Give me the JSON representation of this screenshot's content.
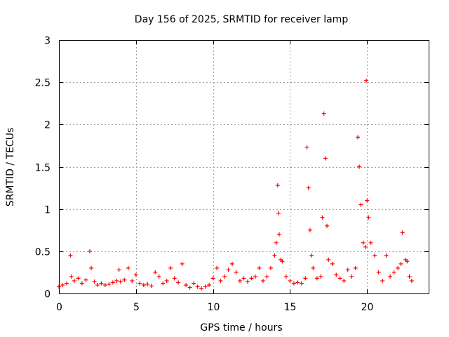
{
  "chart_data": {
    "type": "scatter",
    "title": "Day 156 of 2025, SRMTID for receiver lamp",
    "xlabel": "GPS time / hours",
    "ylabel": "SRMTID / TECUs",
    "xlim": [
      0,
      24
    ],
    "ylim": [
      0,
      3
    ],
    "xticks": [
      "0",
      "5",
      "10",
      "15",
      "20"
    ],
    "xtick_values": [
      0,
      5,
      10,
      15,
      20
    ],
    "yticks": [
      "0",
      "0.5",
      "1",
      "1.5",
      "2",
      "2.5",
      "3"
    ],
    "ytick_values": [
      0,
      0.5,
      1,
      1.5,
      2,
      2.5,
      3
    ],
    "grid": true,
    "marker": "+",
    "color": "#ff0000",
    "series": [
      {
        "name": "SRMTID",
        "x": [
          0.0,
          0.25,
          0.5,
          0.75,
          0.8,
          1.0,
          1.25,
          1.5,
          1.75,
          2.0,
          2.1,
          2.3,
          2.5,
          2.75,
          3.0,
          3.25,
          3.5,
          3.75,
          3.9,
          4.0,
          4.25,
          4.5,
          4.75,
          5.0,
          5.25,
          5.5,
          5.75,
          6.0,
          6.25,
          6.5,
          6.75,
          7.0,
          7.25,
          7.5,
          7.75,
          8.0,
          8.25,
          8.5,
          8.75,
          9.0,
          9.25,
          9.5,
          9.75,
          10.0,
          10.25,
          10.5,
          10.75,
          11.0,
          11.25,
          11.5,
          11.75,
          12.0,
          12.25,
          12.5,
          12.75,
          13.0,
          13.25,
          13.5,
          13.75,
          14.0,
          14.1,
          14.2,
          14.25,
          14.3,
          14.4,
          14.5,
          14.75,
          15.0,
          15.25,
          15.5,
          15.75,
          16.0,
          16.1,
          16.2,
          16.3,
          16.4,
          16.5,
          16.75,
          17.0,
          17.1,
          17.2,
          17.3,
          17.4,
          17.5,
          17.75,
          18.0,
          18.25,
          18.5,
          18.75,
          19.0,
          19.25,
          19.4,
          19.5,
          19.6,
          19.75,
          19.9,
          19.95,
          20.0,
          20.1,
          20.25,
          20.5,
          20.75,
          21.0,
          21.25,
          21.5,
          21.75,
          22.0,
          22.2,
          22.3,
          22.5,
          22.6,
          22.75,
          22.9
        ],
        "y": [
          0.08,
          0.1,
          0.12,
          0.45,
          0.2,
          0.15,
          0.18,
          0.12,
          0.16,
          0.5,
          0.3,
          0.14,
          0.1,
          0.12,
          0.1,
          0.11,
          0.13,
          0.15,
          0.28,
          0.14,
          0.16,
          0.3,
          0.15,
          0.22,
          0.12,
          0.1,
          0.11,
          0.09,
          0.25,
          0.2,
          0.12,
          0.15,
          0.3,
          0.18,
          0.13,
          0.35,
          0.1,
          0.07,
          0.12,
          0.08,
          0.06,
          0.08,
          0.1,
          0.18,
          0.3,
          0.15,
          0.2,
          0.28,
          0.35,
          0.25,
          0.15,
          0.18,
          0.14,
          0.18,
          0.2,
          0.3,
          0.15,
          0.2,
          0.3,
          0.45,
          0.6,
          1.28,
          0.95,
          0.7,
          0.4,
          0.38,
          0.2,
          0.15,
          0.12,
          0.13,
          0.12,
          0.18,
          1.73,
          1.25,
          0.75,
          0.45,
          0.3,
          0.18,
          0.2,
          0.9,
          2.13,
          1.6,
          0.8,
          0.4,
          0.35,
          0.22,
          0.18,
          0.15,
          0.28,
          0.2,
          0.3,
          1.85,
          1.5,
          1.05,
          0.6,
          0.55,
          2.52,
          1.1,
          0.9,
          0.6,
          0.45,
          0.25,
          0.15,
          0.45,
          0.2,
          0.25,
          0.3,
          0.35,
          0.72,
          0.4,
          0.38,
          0.2,
          0.15
        ]
      }
    ]
  }
}
